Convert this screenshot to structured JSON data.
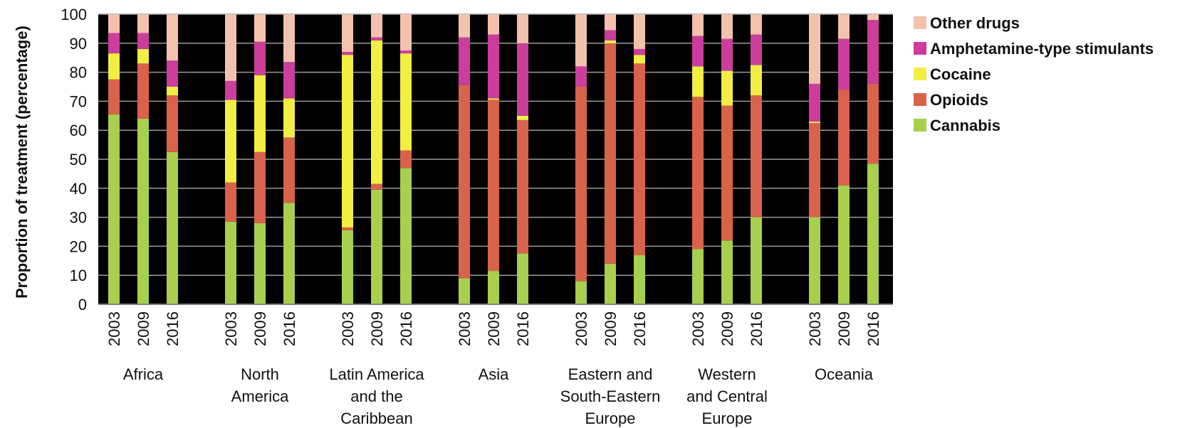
{
  "chart_data": {
    "type": "bar",
    "stacked": true,
    "ylabel": "Proportion of treatment (percentage)",
    "ylim": [
      0,
      100
    ],
    "yticks": [
      0,
      10,
      20,
      30,
      40,
      50,
      60,
      70,
      80,
      90,
      100
    ],
    "grid": true,
    "legend_position": "right",
    "plot_background": "#000000",
    "grid_color": "#9a9a9a",
    "series": [
      {
        "name": "Cannabis",
        "color": "#a8cf4e"
      },
      {
        "name": "Opioids",
        "color": "#d9634a"
      },
      {
        "name": "Cocaine",
        "color": "#f2ee44"
      },
      {
        "name": "Amphetamine-type stimulants",
        "color": "#cc3d9c"
      },
      {
        "name": "Other drugs",
        "color": "#f3c2ae"
      }
    ],
    "legend_order": [
      "Other drugs",
      "Amphetamine-type stimulants",
      "Cocaine",
      "Opioids",
      "Cannabis"
    ],
    "groups": [
      {
        "label": [
          "Africa"
        ],
        "bars": [
          {
            "year": "2003",
            "values": [
              65.5,
              12,
              9,
              7,
              6.5
            ]
          },
          {
            "year": "2009",
            "values": [
              64,
              19,
              5,
              5.5,
              6.5
            ]
          },
          {
            "year": "2016",
            "values": [
              52.5,
              19.5,
              3,
              9,
              16
            ]
          }
        ]
      },
      {
        "label": [
          "North",
          "America"
        ],
        "bars": [
          {
            "year": "2003",
            "values": [
              28.5,
              13.5,
              28.5,
              6.5,
              23
            ]
          },
          {
            "year": "2009",
            "values": [
              28,
              24.5,
              26.5,
              11.5,
              9.5
            ]
          },
          {
            "year": "2016",
            "values": [
              35,
              22.5,
              13.5,
              12.5,
              16.5
            ]
          }
        ]
      },
      {
        "label": [
          "Latin America",
          "and the",
          "Caribbean"
        ],
        "bars": [
          {
            "year": "2003",
            "values": [
              25.5,
              1,
              59.5,
              1,
              13
            ]
          },
          {
            "year": "2009",
            "values": [
              39.5,
              2,
              49.5,
              1,
              8
            ]
          },
          {
            "year": "2016",
            "values": [
              47,
              6,
              33.5,
              1,
              12.5
            ]
          }
        ]
      },
      {
        "label": [
          "Asia"
        ],
        "bars": [
          {
            "year": "2003",
            "values": [
              9,
              66.5,
              0,
              16.5,
              8
            ]
          },
          {
            "year": "2009",
            "values": [
              11.5,
              59,
              0.5,
              22,
              7
            ]
          },
          {
            "year": "2016",
            "values": [
              17.5,
              46,
              1.5,
              25,
              10
            ]
          }
        ]
      },
      {
        "label": [
          "Eastern and",
          "South-Eastern",
          "Europe"
        ],
        "bars": [
          {
            "year": "2003",
            "values": [
              8,
              67,
              0,
              7,
              18
            ]
          },
          {
            "year": "2009",
            "values": [
              14,
              76,
              1,
              3.5,
              5.5
            ]
          },
          {
            "year": "2016",
            "values": [
              17,
              66,
              3,
              2,
              12
            ]
          }
        ]
      },
      {
        "label": [
          "Western",
          "and Central",
          "Europe"
        ],
        "bars": [
          {
            "year": "2003",
            "values": [
              19,
              52.5,
              10.5,
              10.5,
              7.5
            ]
          },
          {
            "year": "2009",
            "values": [
              22,
              46.5,
              12,
              11,
              8.5
            ]
          },
          {
            "year": "2016",
            "values": [
              30,
              42,
              10.5,
              10.5,
              7
            ]
          }
        ]
      },
      {
        "label": [
          "Oceania"
        ],
        "bars": [
          {
            "year": "2003",
            "values": [
              30,
              32.5,
              0.5,
              13,
              24
            ]
          },
          {
            "year": "2009",
            "values": [
              41,
              33,
              0,
              17.5,
              8.5
            ]
          },
          {
            "year": "2016",
            "values": [
              48.5,
              27.5,
              0,
              22,
              2
            ]
          }
        ]
      }
    ]
  }
}
